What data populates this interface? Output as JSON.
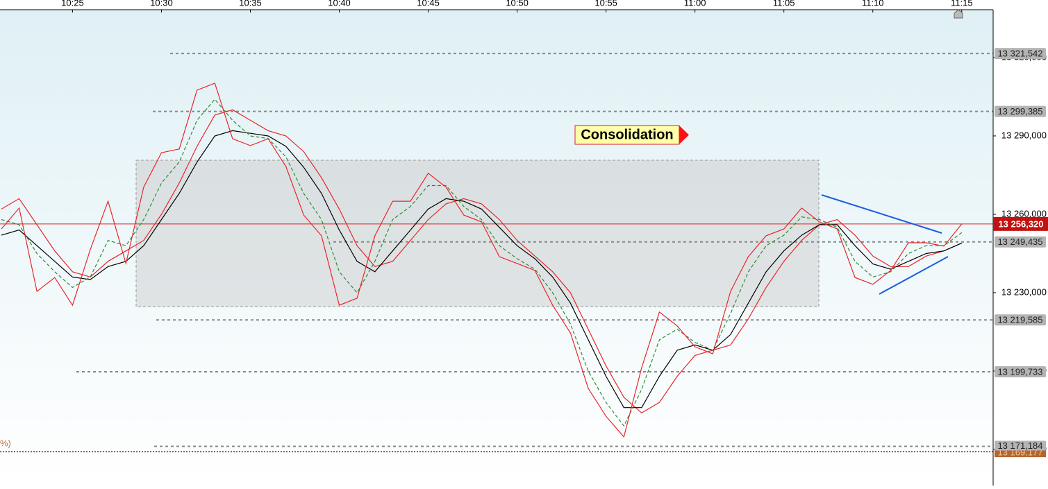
{
  "chart_data": {
    "type": "line",
    "x": [
      "10:21",
      "10:22",
      "10:23",
      "10:24",
      "10:25",
      "10:26",
      "10:27",
      "10:28",
      "10:29",
      "10:30",
      "10:31",
      "10:32",
      "10:33",
      "10:34",
      "10:35",
      "10:36",
      "10:37",
      "10:38",
      "10:39",
      "10:40",
      "10:41",
      "10:42",
      "10:43",
      "10:44",
      "10:45",
      "10:46",
      "10:47",
      "10:48",
      "10:49",
      "10:50",
      "10:51",
      "10:52",
      "10:53",
      "10:54",
      "10:55",
      "10:56",
      "10:57",
      "10:58",
      "10:59",
      "11:00",
      "11:01",
      "11:02",
      "11:03",
      "11:04",
      "11:05",
      "11:06",
      "11:07",
      "11:08",
      "11:09",
      "11:10",
      "11:11",
      "11:12",
      "11:13",
      "11:14",
      "11:15"
    ],
    "series": [
      {
        "color": "#e8262a",
        "style": "solid",
        "values": [
          13254400,
          13262400,
          13230500,
          13235800,
          13225200,
          13246500,
          13265000,
          13241200,
          13270400,
          13283600,
          13285000,
          13307500,
          13310200,
          13288900,
          13286300,
          13288900,
          13278300,
          13259700,
          13251800,
          13225200,
          13227900,
          13251800,
          13265000,
          13265000,
          13275700,
          13270400,
          13259700,
          13257100,
          13243800,
          13241200,
          13238500,
          13225200,
          13214600,
          13193400,
          13182700,
          13174800,
          13201300,
          13222600,
          13217300,
          13209300,
          13206600,
          13230500,
          13243800,
          13251800,
          13254400,
          13262400,
          13257100,
          13254400,
          13235800,
          13233200,
          13238500,
          13249100,
          13249100,
          13247800,
          13256300
        ]
      },
      {
        "color": "#2e8b2e",
        "style": "dashed",
        "values": [
          13258000,
          13256000,
          13245000,
          13238000,
          13232000,
          13236000,
          13250000,
          13248000,
          13258000,
          13272000,
          13280000,
          13296000,
          13304000,
          13296000,
          13290000,
          13289000,
          13282000,
          13268000,
          13258000,
          13238000,
          13230000,
          13242000,
          13258000,
          13263000,
          13271000,
          13271000,
          13263000,
          13258000,
          13248000,
          13243000,
          13239000,
          13230000,
          13218000,
          13200000,
          13188000,
          13179000,
          13193000,
          13212000,
          13216000,
          13211000,
          13208000,
          13222000,
          13238000,
          13248000,
          13252000,
          13259000,
          13258000,
          13255000,
          13242000,
          13236000,
          13238000,
          13245000,
          13248000,
          13248000,
          13253000
        ]
      },
      {
        "color": "#000000",
        "style": "solid",
        "values": [
          13252000,
          13254000,
          13248000,
          13242000,
          13236000,
          13235000,
          13240000,
          13242000,
          13248000,
          13258000,
          13268000,
          13280000,
          13290000,
          13292000,
          13291000,
          13290000,
          13286000,
          13278000,
          13268000,
          13254000,
          13242000,
          13238000,
          13246000,
          13254000,
          13262000,
          13266000,
          13265000,
          13262000,
          13255000,
          13248000,
          13243000,
          13236000,
          13226000,
          13212000,
          13198000,
          13186000,
          13186000,
          13198000,
          13208000,
          13210000,
          13208000,
          13214000,
          13226000,
          13238000,
          13246000,
          13252000,
          13256000,
          13256000,
          13248000,
          13241000,
          13239000,
          13242000,
          13245000,
          13246000,
          13249000
        ]
      },
      {
        "color": "#e8262a",
        "style": "solid",
        "values": [
          13262000,
          13266000,
          13256000,
          13246000,
          13238000,
          13236000,
          13242000,
          13246000,
          13250000,
          13260000,
          13272000,
          13286000,
          13298000,
          13300000,
          13296000,
          13292000,
          13290000,
          13284000,
          13274000,
          13262000,
          13248000,
          13240000,
          13242000,
          13250000,
          13258000,
          13264000,
          13266000,
          13264000,
          13258000,
          13250000,
          13244000,
          13238000,
          13230000,
          13216000,
          13202000,
          13190000,
          13184000,
          13188000,
          13198000,
          13206000,
          13208000,
          13210000,
          13220000,
          13232000,
          13242000,
          13250000,
          13256000,
          13258000,
          13252000,
          13244000,
          13240000,
          13240000,
          13244000,
          13246000,
          13249000
        ]
      }
    ],
    "xlim": [
      "10:21",
      "11:17"
    ],
    "xticks": [
      "10:25",
      "10:30",
      "10:35",
      "10:40",
      "10:45",
      "10:50",
      "10:55",
      "11:00",
      "11:05",
      "11:10",
      "11:15"
    ],
    "ylim": [
      13156200,
      13338300
    ],
    "yticks": [
      {
        "value": 13170000,
        "label": "13 170,000"
      },
      {
        "value": 13200000,
        "label": "13 200,000"
      },
      {
        "value": 13230000,
        "label": "13 230,000"
      },
      {
        "value": 13260000,
        "label": "13 260,000"
      },
      {
        "value": 13290000,
        "label": "13 290,000"
      },
      {
        "value": 13320000,
        "label": "13 320,000"
      }
    ],
    "levels": [
      {
        "value": 13321542,
        "label": "13 321,542"
      },
      {
        "value": 13299385,
        "label": "13 299,385"
      },
      {
        "value": 13249435,
        "label": "13 249,435"
      },
      {
        "value": 13219585,
        "label": "13 219,585"
      },
      {
        "value": 13199733,
        "label": "13 199,733"
      },
      {
        "value": 13171184,
        "label": "13 171,184"
      }
    ],
    "fib_level": {
      "value": 13169177,
      "label": "13 169,177",
      "text": "%)"
    },
    "last_price": {
      "value": 13256320,
      "label": "13 256,320"
    },
    "annotation": "Consolidation"
  }
}
